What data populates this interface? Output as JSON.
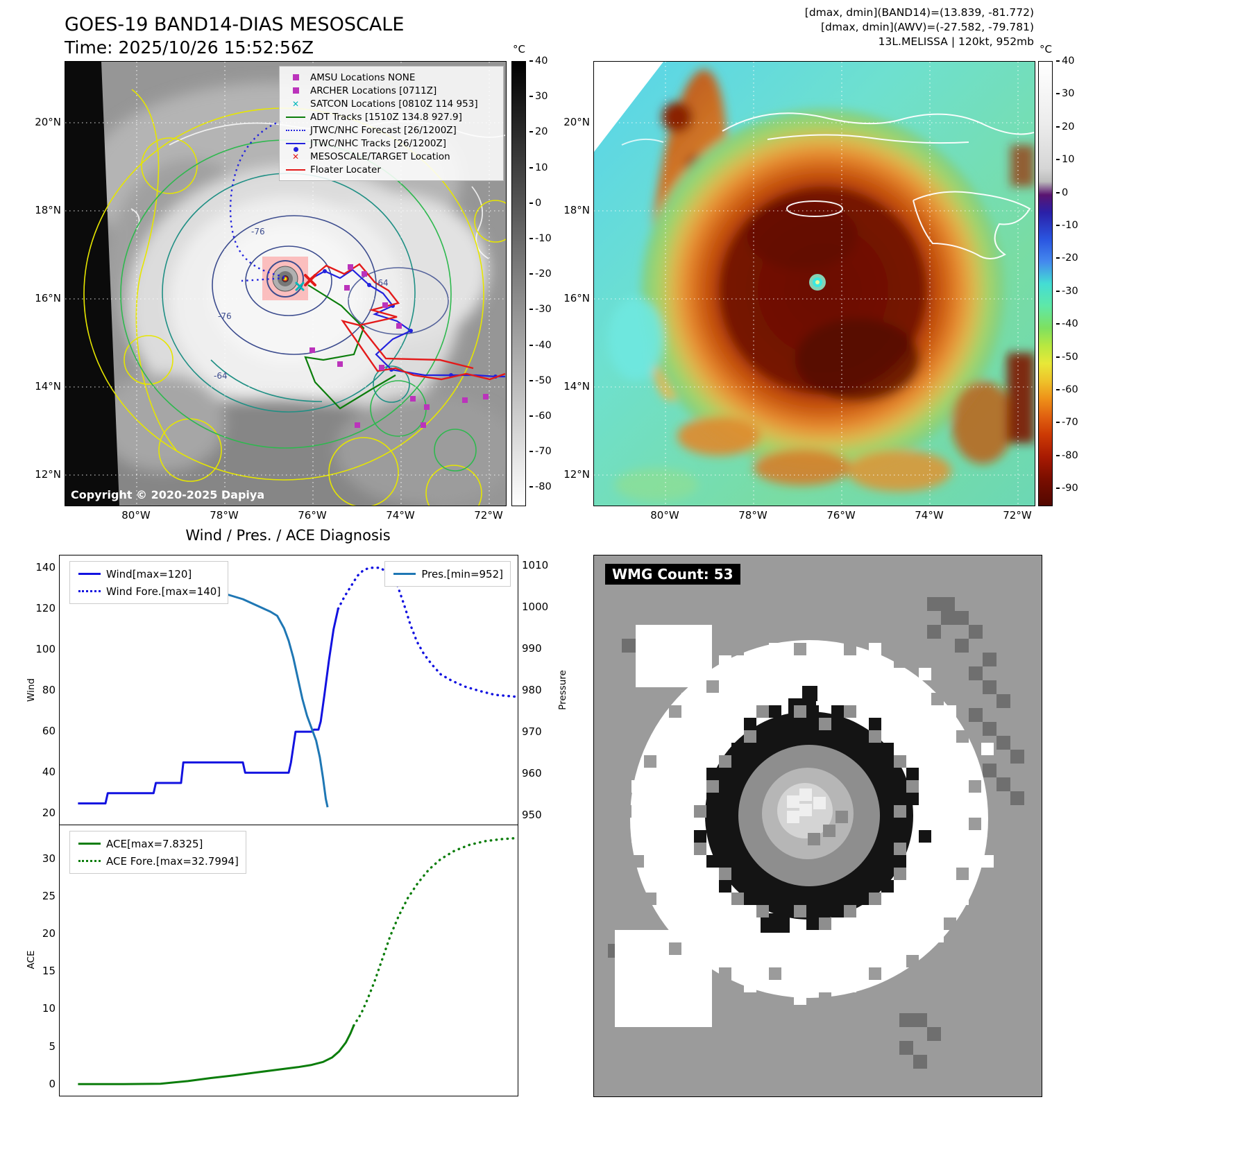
{
  "panel_band14": {
    "title": "GOES-19 BAND14-DIAS MESOSCALE",
    "time": "Time: 2025/10/26 15:52:56Z",
    "copyright": "Copyright © 2020-2025 Dapiya",
    "legend": [
      {
        "label": "AMSU Locations NONE",
        "marker": "square",
        "color": "#bb33bb"
      },
      {
        "label": "ARCHER Locations [0711Z]",
        "marker": "square",
        "color": "#bb33bb"
      },
      {
        "label": "SATCON Locations [0810Z 114 953]",
        "marker": "x",
        "color": "#00b8b8"
      },
      {
        "label": "ADT Tracks [1510Z 134.8 927.9]",
        "marker": "line",
        "color": "#0b7d0b"
      },
      {
        "label": "JTWC/NHC Forecast [26/1200Z]",
        "marker": "dotted",
        "color": "#2222dd"
      },
      {
        "label": "JTWC/NHC Tracks [26/1200Z]",
        "marker": "line-dot",
        "color": "#2222dd"
      },
      {
        "label": "MESOSCALE/TARGET Location",
        "marker": "x",
        "color": "#e31a1a"
      },
      {
        "label": "Floater Locater",
        "marker": "line",
        "color": "#e31a1a"
      }
    ],
    "contour_labels": [
      "-76",
      "-64",
      "-76",
      "-64"
    ],
    "lat_ticks": [
      "20°N",
      "18°N",
      "16°N",
      "14°N",
      "12°N"
    ],
    "lon_ticks": [
      "80°W",
      "78°W",
      "76°W",
      "74°W",
      "72°W"
    ],
    "colorbar": {
      "unit": "°C",
      "ticks": [
        40,
        30,
        20,
        10,
        0,
        -10,
        -20,
        -30,
        -40,
        -50,
        -60,
        -70,
        -80
      ]
    }
  },
  "panel_awv": {
    "header_line1": "[dmax, dmin](BAND14)=(13.839, -81.772)",
    "header_line2": "[dmax, dmin](AWV)=(-27.582, -79.781)",
    "header_line3": "13L.MELISSA | 120kt, 952mb",
    "lat_ticks": [
      "20°N",
      "18°N",
      "16°N",
      "14°N",
      "12°N"
    ],
    "lon_ticks": [
      "80°W",
      "78°W",
      "76°W",
      "74°W",
      "72°W"
    ],
    "colorbar": {
      "unit": "°C",
      "ticks": [
        40,
        30,
        20,
        10,
        0,
        -10,
        -20,
        -30,
        -40,
        -50,
        -60,
        -70,
        -80,
        -90
      ]
    }
  },
  "wmg": {
    "label": "WMG Count: 53"
  },
  "chart_data": [
    {
      "type": "line",
      "title": "Wind / Pres. / ACE Diagnosis",
      "ylabel_left": "Wind",
      "ylabel_right": "Pressure",
      "ylim_left": [
        14,
        146
      ],
      "ylim_right": [
        947.5,
        1012.5
      ],
      "yticks_left": [
        140,
        120,
        100,
        80,
        60,
        40,
        20
      ],
      "yticks_right": [
        1010,
        1000,
        990,
        980,
        970,
        960,
        950
      ],
      "grid": false,
      "legend_position": [
        "upper left",
        "upper right"
      ],
      "series": [
        {
          "name": "Wind[max=120]",
          "style": "solid",
          "color": "#1212e0",
          "axis": "left",
          "points": [
            [
              0.04,
              25
            ],
            [
              0.1,
              25
            ],
            [
              0.105,
              30
            ],
            [
              0.205,
              30
            ],
            [
              0.21,
              35
            ],
            [
              0.265,
              35
            ],
            [
              0.27,
              45
            ],
            [
              0.4,
              45
            ],
            [
              0.405,
              40
            ],
            [
              0.5,
              40
            ],
            [
              0.505,
              45
            ],
            [
              0.515,
              60
            ],
            [
              0.55,
              60
            ],
            [
              0.555,
              61
            ],
            [
              0.565,
              61
            ],
            [
              0.57,
              65
            ],
            [
              0.578,
              78
            ],
            [
              0.588,
              95
            ],
            [
              0.598,
              110
            ],
            [
              0.608,
              120
            ]
          ]
        },
        {
          "name": "Wind Fore.[max=140]",
          "style": "dotted",
          "color": "#1212e0",
          "axis": "left",
          "points": [
            [
              0.608,
              120
            ],
            [
              0.622,
              126
            ],
            [
              0.636,
              131
            ],
            [
              0.65,
              136
            ],
            [
              0.664,
              139
            ],
            [
              0.678,
              140
            ],
            [
              0.7,
              140
            ],
            [
              0.72,
              137
            ],
            [
              0.738,
              131
            ],
            [
              0.752,
              122
            ],
            [
              0.766,
              112
            ],
            [
              0.78,
              104
            ],
            [
              0.795,
              98
            ],
            [
              0.812,
              93
            ],
            [
              0.832,
              88
            ],
            [
              0.855,
              85
            ],
            [
              0.885,
              82
            ],
            [
              0.915,
              80
            ],
            [
              0.95,
              78
            ],
            [
              1.0,
              77
            ]
          ]
        },
        {
          "name": "Pres.[min=952]",
          "style": "solid",
          "color": "#1f77b4",
          "axis": "right",
          "points": [
            [
              0.04,
              1008
            ],
            [
              0.12,
              1008
            ],
            [
              0.18,
              1007
            ],
            [
              0.24,
              1006
            ],
            [
              0.3,
              1005
            ],
            [
              0.34,
              1004
            ],
            [
              0.37,
              1003
            ],
            [
              0.4,
              1002
            ],
            [
              0.42,
              1001
            ],
            [
              0.44,
              1000
            ],
            [
              0.46,
              999
            ],
            [
              0.475,
              998
            ],
            [
              0.49,
              995
            ],
            [
              0.5,
              992
            ],
            [
              0.51,
              988
            ],
            [
              0.52,
              983
            ],
            [
              0.53,
              978
            ],
            [
              0.54,
              974
            ],
            [
              0.55,
              971
            ],
            [
              0.56,
              968
            ],
            [
              0.568,
              964
            ],
            [
              0.575,
              959
            ],
            [
              0.581,
              954
            ],
            [
              0.585,
              952
            ]
          ]
        }
      ]
    },
    {
      "type": "line",
      "ylabel_left": "ACE",
      "ylim_left": [
        -1.5,
        34.5
      ],
      "yticks_left": [
        30,
        25,
        20,
        15,
        10,
        5,
        0
      ],
      "grid": false,
      "legend_position": "upper left",
      "series": [
        {
          "name": "ACE[max=7.8325]",
          "style": "solid",
          "color": "#0b7d0b",
          "axis": "left",
          "points": [
            [
              0.04,
              0.05
            ],
            [
              0.14,
              0.05
            ],
            [
              0.22,
              0.1
            ],
            [
              0.28,
              0.45
            ],
            [
              0.33,
              0.85
            ],
            [
              0.38,
              1.2
            ],
            [
              0.43,
              1.6
            ],
            [
              0.48,
              2.0
            ],
            [
              0.52,
              2.3
            ],
            [
              0.55,
              2.6
            ],
            [
              0.575,
              3.0
            ],
            [
              0.595,
              3.6
            ],
            [
              0.61,
              4.4
            ],
            [
              0.625,
              5.6
            ],
            [
              0.635,
              6.8
            ],
            [
              0.642,
              7.83
            ]
          ]
        },
        {
          "name": "ACE Fore.[max=32.7994]",
          "style": "dotted",
          "color": "#0b7d0b",
          "axis": "left",
          "points": [
            [
              0.642,
              7.83
            ],
            [
              0.658,
              9.4
            ],
            [
              0.672,
              11.3
            ],
            [
              0.688,
              13.8
            ],
            [
              0.705,
              16.8
            ],
            [
              0.722,
              19.8
            ],
            [
              0.74,
              22.4
            ],
            [
              0.76,
              24.8
            ],
            [
              0.782,
              26.8
            ],
            [
              0.806,
              28.6
            ],
            [
              0.832,
              30.0
            ],
            [
              0.862,
              31.1
            ],
            [
              0.895,
              31.9
            ],
            [
              0.93,
              32.4
            ],
            [
              0.965,
              32.65
            ],
            [
              1.0,
              32.8
            ]
          ]
        }
      ]
    }
  ]
}
